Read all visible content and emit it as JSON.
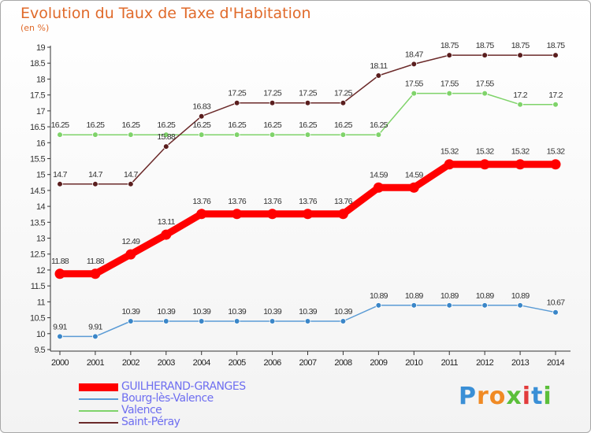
{
  "title": "Evolution du Taux de Taxe d'Habitation",
  "unit": "(en %)",
  "brand": {
    "letters": [
      "P",
      "r",
      "o",
      "x",
      "i",
      "t",
      "i"
    ],
    "colors": [
      "#3a8fd6",
      "#f08a24",
      "#f08a24",
      "#5bbf3a",
      "#e23b3b",
      "#3a8fd6",
      "#5bbf3a"
    ]
  },
  "chart_data": {
    "type": "line",
    "title": "Evolution du Taux de Taxe d'Habitation",
    "ylabel": "(en %)",
    "xlabel": "",
    "x": [
      "2000",
      "2001",
      "2002",
      "2003",
      "2004",
      "2005",
      "2006",
      "2007",
      "2008",
      "2009",
      "2010",
      "2011",
      "2012",
      "2013",
      "2014"
    ],
    "ylim": [
      9.5,
      19
    ],
    "yticks": [
      "9.5",
      "10",
      "10.5",
      "11",
      "11.5",
      "12",
      "12.5",
      "13",
      "13.5",
      "14",
      "14.5",
      "15",
      "15.5",
      "16",
      "16.5",
      "17",
      "17.5",
      "18",
      "18.5",
      "19"
    ],
    "grid": false,
    "legend_position": "bottom-left",
    "series": [
      {
        "name": "GUILHERAND-GRANGES",
        "color": "#ff0000",
        "values": [
          11.88,
          11.88,
          12.49,
          13.11,
          13.76,
          13.76,
          13.76,
          13.76,
          13.76,
          14.59,
          14.59,
          15.32,
          15.32,
          15.32,
          15.32
        ],
        "labels": [
          "11.88",
          "11.88",
          "12.49",
          "13.11",
          "13.76",
          "13.76",
          "13.76",
          "13.76",
          "13.76",
          "14.59",
          "14.59",
          "15.32",
          "15.32",
          "15.32",
          "15.32"
        ]
      },
      {
        "name": "Bourg-lès-Valence",
        "color": "#5a9bd5",
        "values": [
          9.91,
          9.91,
          10.39,
          10.39,
          10.39,
          10.39,
          10.39,
          10.39,
          10.39,
          10.89,
          10.89,
          10.89,
          10.89,
          10.89,
          10.67
        ],
        "labels": [
          "9.91",
          "9.91",
          "10.39",
          "10.39",
          "10.39",
          "10.39",
          "10.39",
          "10.39",
          "10.39",
          "10.89",
          "10.89",
          "10.89",
          "10.89",
          "10.89",
          "10.67"
        ]
      },
      {
        "name": "Valence",
        "color": "#7fd36a",
        "values": [
          16.25,
          16.25,
          16.25,
          16.25,
          16.25,
          16.25,
          16.25,
          16.25,
          16.25,
          16.25,
          17.55,
          17.55,
          17.55,
          17.2,
          17.2
        ],
        "labels": [
          "16.25",
          "16.25",
          "16.25",
          "16.25",
          "16.25",
          "16.25",
          "16.25",
          "16.25",
          "16.25",
          "16.25",
          "17.55",
          "17.55",
          "17.55",
          "17.2",
          "17.2"
        ]
      },
      {
        "name": "Saint-Péray",
        "color": "#6b2a2a",
        "values": [
          14.7,
          14.7,
          14.7,
          15.88,
          16.83,
          17.25,
          17.25,
          17.25,
          17.25,
          18.11,
          18.47,
          18.75,
          18.75,
          18.75,
          18.75
        ],
        "labels": [
          "14.7",
          "14.7",
          "14.7",
          "15.88",
          "16.83",
          "17.25",
          "17.25",
          "17.25",
          "17.25",
          "18.11",
          "18.47",
          "18.75",
          "18.75",
          "18.75",
          "18.75"
        ]
      }
    ]
  }
}
